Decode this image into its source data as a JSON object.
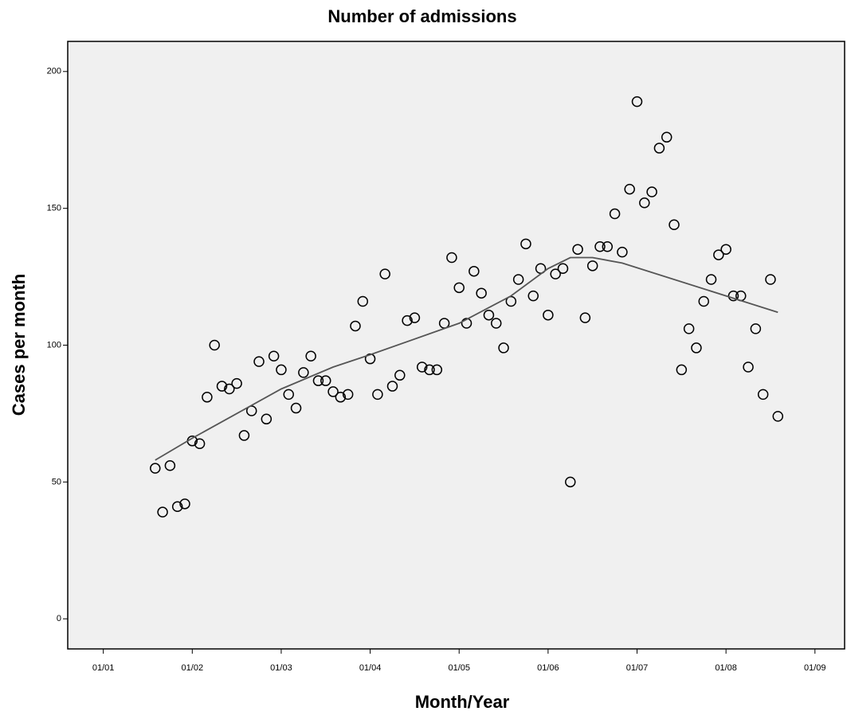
{
  "chart_data": {
    "type": "scatter",
    "title": "Number of admissions",
    "x_label": "Month/Year",
    "y_label": "Cases per month",
    "series": [
      {
        "mode": "markers",
        "color": "#000000",
        "x": [
          7,
          8,
          9,
          10,
          11,
          12,
          13,
          14,
          15,
          16,
          17,
          18,
          19,
          20,
          21,
          22,
          23,
          24,
          25,
          26,
          27,
          28,
          29,
          30,
          31,
          32,
          33,
          34,
          35,
          36,
          37,
          38,
          39,
          40,
          41,
          42,
          43,
          44,
          45,
          46,
          47,
          48,
          49,
          50,
          51,
          52,
          53,
          54,
          55,
          56,
          57,
          58,
          59,
          60,
          61,
          62,
          63,
          64,
          65,
          66,
          67,
          68,
          69,
          70,
          71,
          72,
          73,
          74,
          75,
          76,
          77,
          78,
          79,
          80,
          81,
          82,
          83,
          84,
          85,
          86,
          87,
          88,
          89,
          90,
          91
        ],
        "values": [
          55,
          39,
          56,
          41,
          42,
          65,
          64,
          81,
          100,
          85,
          84,
          86,
          67,
          76,
          94,
          73,
          96,
          91,
          82,
          77,
          90,
          96,
          87,
          87,
          83,
          81,
          82,
          107,
          116,
          95,
          82,
          126,
          85,
          89,
          109,
          110,
          92,
          91,
          91,
          108,
          132,
          121,
          108,
          127,
          119,
          111,
          108,
          99,
          116,
          124,
          137,
          118,
          128,
          111,
          126,
          128,
          50,
          135,
          110,
          129,
          136,
          136,
          148,
          134,
          157,
          189,
          152,
          156,
          172,
          176,
          144,
          91,
          106,
          99,
          116,
          124,
          133,
          135,
          118,
          118,
          92,
          106,
          82,
          124,
          74
        ]
      },
      {
        "mode": "line",
        "color": "#555555",
        "x": [
          7,
          12,
          24,
          31,
          36,
          48,
          55,
          60,
          63,
          66,
          70,
          91
        ],
        "values": [
          58,
          66,
          84,
          92,
          96.5,
          108,
          118,
          128,
          132,
          132,
          130,
          112
        ]
      }
    ],
    "xlim": [
      -4.8,
      100
    ],
    "ylim": [
      -11,
      211
    ],
    "xticks": [
      {
        "value": 0,
        "label": "01/01"
      },
      {
        "value": 12,
        "label": "01/02"
      },
      {
        "value": 24,
        "label": "01/03"
      },
      {
        "value": 36,
        "label": "01/04"
      },
      {
        "value": 48,
        "label": "01/05"
      },
      {
        "value": 60,
        "label": "01/06"
      },
      {
        "value": 72,
        "label": "01/07"
      },
      {
        "value": 84,
        "label": "01/08"
      },
      {
        "value": 96,
        "label": "01/09"
      }
    ],
    "yticks": [
      0,
      50,
      100,
      150,
      200
    ],
    "background": "#f0f0f0"
  }
}
